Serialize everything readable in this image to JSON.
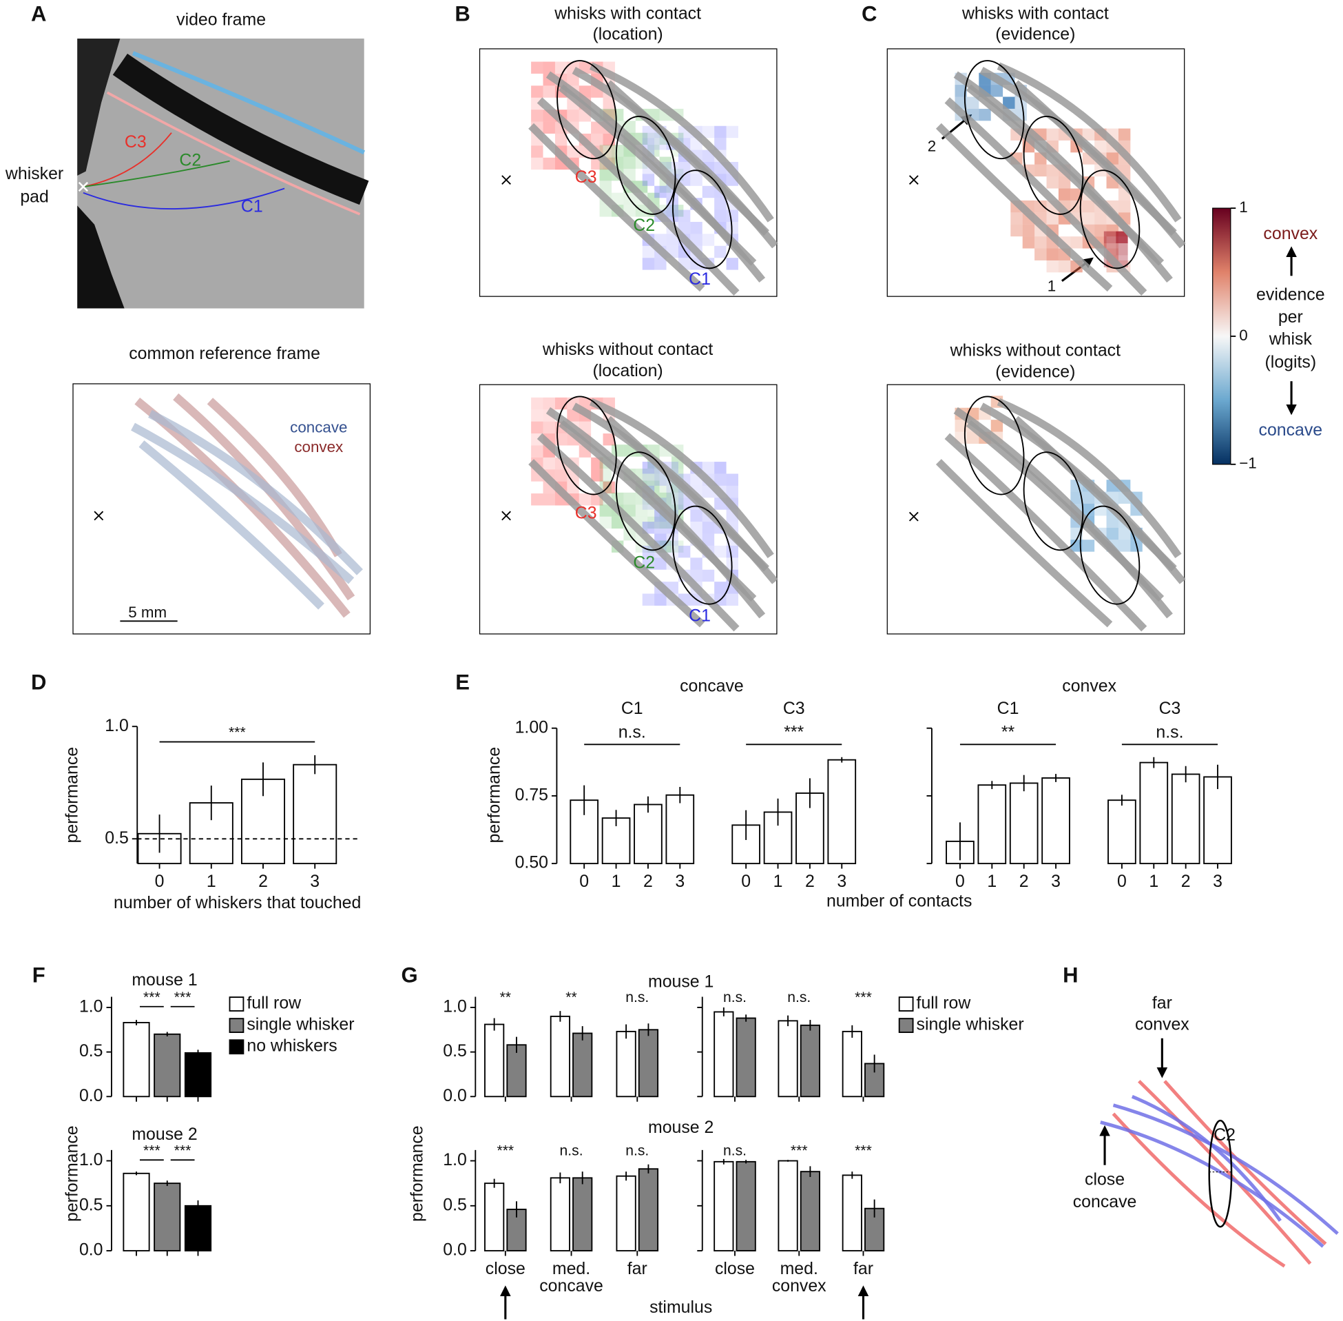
{
  "panel_letters": [
    "A",
    "B",
    "C",
    "D",
    "E",
    "F",
    "G",
    "H"
  ],
  "diagrams": {
    "A": {
      "title": "video frame",
      "pad_label": [
        "whisker",
        "pad"
      ],
      "whisker_labels": [
        "C3",
        "C2",
        "C1"
      ],
      "reference_title": "common reference frame",
      "legend": [
        "concave",
        "convex"
      ],
      "scale_bar": "5 mm"
    },
    "B": {
      "top_title": [
        "whisks with contact",
        "(location)"
      ],
      "bottom_title": [
        "whisks without contact",
        "(location)"
      ],
      "top_labels": [
        "C3",
        "C2",
        "C1"
      ],
      "bottom_labels": [
        "C3",
        "C2",
        "C1"
      ]
    },
    "C": {
      "top_title": [
        "whisks with contact",
        "(evidence)"
      ],
      "bottom_title": [
        "whisks without contact",
        "(evidence)"
      ],
      "arrow_labels": [
        "2",
        "1"
      ]
    },
    "colorbar": {
      "lim": [
        -1,
        1
      ],
      "ticks": [
        1,
        0,
        {
          "value": -1,
          "label": "−1"
        }
      ],
      "top_label": "convex",
      "label": [
        "evidence",
        "per",
        "whisk",
        "(logits)"
      ],
      "bottom_label": "concave"
    },
    "H": {
      "top_label": [
        "far",
        "convex"
      ],
      "bottom_label": [
        "close",
        "concave"
      ],
      "ellipse_label": "C2"
    }
  },
  "chart_data": [
    {
      "type": "bar",
      "categories": [
        "0",
        "1",
        "2",
        "3"
      ],
      "values": [
        0.523,
        0.66,
        0.765,
        0.83
      ],
      "errors": [
        0.085,
        0.077,
        0.075,
        0.042
      ],
      "color": "#ffffff",
      "ylim": [
        0.39,
        1.0
      ],
      "yticks": [
        0.5,
        {
          "value": 1,
          "label": "1.0"
        }
      ],
      "reference_line": 0.5,
      "significance": "***",
      "xlabel": "number of whiskers that touched",
      "ylabel": "performance"
    },
    {
      "type": "grouped_bar",
      "title": "concave",
      "color": "#ffffff",
      "groups": [
        {
          "name": "C1",
          "significance": "n.s.",
          "categories": [
            "0",
            "1",
            "2",
            "3"
          ],
          "values": [
            0.734,
            0.668,
            0.718,
            0.753
          ],
          "errors": [
            0.055,
            0.03,
            0.03,
            0.03
          ]
        },
        {
          "name": "C3",
          "significance": "***",
          "categories": [
            "0",
            "1",
            "2",
            "3"
          ],
          "values": [
            0.642,
            0.69,
            0.76,
            0.883
          ],
          "errors": [
            0.055,
            0.05,
            0.055,
            0.01
          ]
        }
      ],
      "ylim": [
        0.5,
        1.0
      ],
      "yticks": [
        {
          "value": 0.5,
          "label": "0.50"
        },
        0.75,
        {
          "value": 1,
          "label": "1.00"
        }
      ],
      "ylabel": "performance",
      "xlabel": "number of contacts"
    },
    {
      "type": "grouped_bar",
      "title": "convex",
      "color": "#ffffff",
      "groups": [
        {
          "name": "C1",
          "significance": "**",
          "categories": [
            "0",
            "1",
            "2",
            "3"
          ],
          "values": [
            0.582,
            0.79,
            0.797,
            0.816
          ],
          "errors": [
            0.07,
            0.015,
            0.03,
            0.015
          ]
        },
        {
          "name": "C3",
          "significance": "n.s.",
          "categories": [
            "0",
            "1",
            "2",
            "3"
          ],
          "values": [
            0.734,
            0.873,
            0.83,
            0.82
          ],
          "errors": [
            0.02,
            0.02,
            0.03,
            0.045
          ]
        }
      ],
      "ylim": [
        0.5,
        1.0
      ],
      "yticks": [
        0.5,
        0.75,
        1
      ],
      "ytick_labels": false
    },
    {
      "type": "bar",
      "title": "mouse 1",
      "categories": [
        "full row",
        "single whisker",
        "no whiskers"
      ],
      "colors": [
        "#ffffff",
        "#808080",
        "#000000"
      ],
      "values": [
        0.83,
        0.7,
        0.49
      ],
      "errors": [
        0.03,
        0.025,
        0.035
      ],
      "significance": [
        "***",
        "***"
      ],
      "ylim": [
        0,
        1.12
      ],
      "yticks": [
        {
          "value": 0,
          "label": "0.0"
        },
        0.5,
        {
          "value": 1,
          "label": "1.0"
        }
      ],
      "legend": "right",
      "ylabel": "performance"
    },
    {
      "type": "bar",
      "title": "mouse 2",
      "colors": [
        "#ffffff",
        "#808080",
        "#000000"
      ],
      "values": [
        0.86,
        0.75,
        0.5
      ],
      "errors": [
        0.02,
        0.03,
        0.06
      ],
      "significance": [
        "***",
        "***"
      ],
      "ylim": [
        0,
        1.12
      ],
      "yticks": [
        {
          "value": 0,
          "label": "0.0"
        },
        0.5,
        {
          "value": 1,
          "label": "1.0"
        }
      ]
    },
    {
      "type": "paired_bar",
      "title": "mouse 1",
      "series": [
        {
          "color": "#ffffff",
          "values": [
            0.81,
            0.9,
            0.73
          ],
          "errors": [
            0.07,
            0.06,
            0.08
          ]
        },
        {
          "color": "#808080",
          "values": [
            0.58,
            0.71,
            0.75
          ],
          "errors": [
            0.09,
            0.08,
            0.07
          ]
        }
      ],
      "significance": [
        "**",
        "**",
        "n.s."
      ],
      "ylim": [
        0,
        1.12
      ],
      "yticks": [
        {
          "value": 0,
          "label": "0.0"
        },
        0.5,
        {
          "value": 1,
          "label": "1.0"
        }
      ]
    },
    {
      "type": "paired_bar",
      "series": [
        {
          "name": "full row",
          "color": "#ffffff",
          "values": [
            0.95,
            0.85,
            0.73
          ],
          "errors": [
            0.05,
            0.06,
            0.07
          ]
        },
        {
          "name": "single whisker",
          "color": "#808080",
          "values": [
            0.88,
            0.8,
            0.37
          ],
          "errors": [
            0.04,
            0.06,
            0.1
          ]
        }
      ],
      "significance": [
        "n.s.",
        "n.s.",
        "***"
      ],
      "legend": "right",
      "ylim": [
        0,
        1.12
      ],
      "yticks": [
        0,
        0.5,
        1
      ],
      "ytick_labels": false
    },
    {
      "type": "paired_bar",
      "title": "mouse 2",
      "categories": [
        "close",
        "med.",
        "far"
      ],
      "group_label": "concave",
      "series": [
        {
          "color": "#ffffff",
          "values": [
            0.75,
            0.81,
            0.83
          ],
          "errors": [
            0.05,
            0.06,
            0.05
          ]
        },
        {
          "color": "#808080",
          "values": [
            0.46,
            0.81,
            0.91
          ],
          "errors": [
            0.09,
            0.07,
            0.05
          ]
        }
      ],
      "significance": [
        "***",
        "n.s.",
        "n.s."
      ],
      "ylim": [
        0,
        1.12
      ],
      "yticks": [
        {
          "value": 0,
          "label": "0.0"
        },
        0.5,
        {
          "value": 1,
          "label": "1.0"
        }
      ],
      "xlabel": "stimulus",
      "ylabel": "performance"
    },
    {
      "type": "paired_bar",
      "categories": [
        "close",
        "med.",
        "far"
      ],
      "group_label": "convex",
      "series": [
        {
          "color": "#ffffff",
          "values": [
            0.99,
            1.0,
            0.84
          ],
          "errors": [
            0.03,
            0.01,
            0.04
          ]
        },
        {
          "color": "#808080",
          "values": [
            0.99,
            0.88,
            0.47
          ],
          "errors": [
            0.02,
            0.06,
            0.1
          ]
        }
      ],
      "significance": [
        "n.s.",
        "***",
        "***"
      ],
      "ylim": [
        0,
        1.12
      ],
      "yticks": [
        0,
        0.5,
        1
      ],
      "ytick_labels": false
    }
  ]
}
